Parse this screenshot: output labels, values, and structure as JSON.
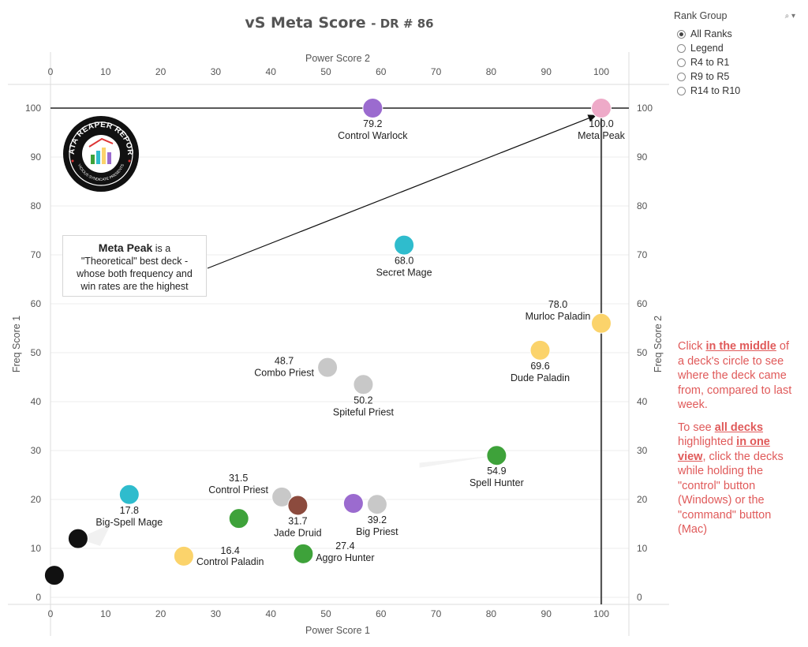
{
  "title": {
    "main": "vS Meta Score",
    "sub": "- DR # 86"
  },
  "colors": {
    "purple": "#9b6bcf",
    "pink": "#eeaac8",
    "teal": "#2fbccd",
    "yellow": "#fbd36b",
    "gray": "#c8c8c8",
    "green": "#3ea23a",
    "brown": "#8c4b3e",
    "black": "#111111"
  },
  "chart_data": {
    "type": "scatter",
    "xlabel_bottom": "Power Score 1",
    "xlabel_top": "Power Score 2",
    "ylabel_left": "Freq Score 1",
    "ylabel_right": "Freq Score 2",
    "xlim": [
      0,
      105
    ],
    "ylim": [
      -1,
      105
    ],
    "xticks": [
      "0",
      "10",
      "20",
      "30",
      "40",
      "50",
      "60",
      "70",
      "80",
      "90",
      "100"
    ],
    "yticks": [
      "0",
      "10",
      "20",
      "30",
      "40",
      "50",
      "60",
      "70",
      "80",
      "90",
      "100"
    ],
    "reference_lines": {
      "x": 100,
      "y": 100
    },
    "points": [
      {
        "name": "Control Warlock",
        "score": "79.2",
        "x": 58.5,
        "y": 100,
        "color": "#9b6bcf",
        "label_pos": "below"
      },
      {
        "name": "Meta Peak",
        "score": "100.0",
        "x": 100,
        "y": 100,
        "color": "#eeaac8",
        "label_pos": "below"
      },
      {
        "name": "Secret Mage",
        "score": "68.0",
        "x": 64.2,
        "y": 72,
        "color": "#2fbccd",
        "label_pos": "below"
      },
      {
        "name": "Murloc Paladin",
        "score": "78.0",
        "x": 100,
        "y": 56,
        "color": "#fbd36b",
        "label_pos": "upper-left"
      },
      {
        "name": "Dude Paladin",
        "score": "69.6",
        "x": 88.9,
        "y": 50.5,
        "color": "#fbd36b",
        "label_pos": "below"
      },
      {
        "name": "Combo Priest",
        "score": "48.7",
        "x": 50.3,
        "y": 47,
        "color": "#c8c8c8",
        "label_pos": "left"
      },
      {
        "name": "Spiteful Priest",
        "score": "50.2",
        "x": 56.8,
        "y": 43.5,
        "color": "#c8c8c8",
        "label_pos": "below"
      },
      {
        "name": "Spell Hunter",
        "score": "54.9",
        "x": 81,
        "y": 29,
        "color": "#3ea23a",
        "label_pos": "below"
      },
      {
        "name": "Big-Spell Mage",
        "score": "17.8",
        "x": 14.3,
        "y": 21,
        "color": "#2fbccd",
        "label_pos": "below"
      },
      {
        "name": "Control Priest",
        "score": "31.5",
        "x": 42,
        "y": 20.5,
        "color": "#c8c8c8",
        "label_pos": "upper-left"
      },
      {
        "name": "Jade Druid",
        "score": "31.7",
        "x": 44.9,
        "y": 18.8,
        "color": "#8c4b3e",
        "label_pos": "below"
      },
      {
        "name": "Big Priest",
        "score": "39.2",
        "x": 59.3,
        "y": 19,
        "color": "#c8c8c8",
        "label_pos": "below"
      },
      {
        "name": "",
        "score": "",
        "x": 55,
        "y": 19.2,
        "color": "#9b6bcf",
        "label_pos": "none"
      },
      {
        "name": "Control Paladin",
        "score": "16.4",
        "x": 34.2,
        "y": 16.1,
        "color": "#3ea23a",
        "label_pos": "lower-left-text"
      },
      {
        "name": "Aggro Hunter",
        "score": "27.4",
        "x": 45.9,
        "y": 8.9,
        "color": "#3ea23a",
        "label_pos": "right"
      },
      {
        "name": "",
        "score": "",
        "x": 24.2,
        "y": 8.4,
        "color": "#fbd36b",
        "label_pos": "none"
      },
      {
        "name": "",
        "score": "",
        "x": 5,
        "y": 12,
        "color": "#111111",
        "label_pos": "none"
      },
      {
        "name": "",
        "score": "",
        "x": 0.7,
        "y": 4.5,
        "color": "#111111",
        "label_pos": "none"
      }
    ]
  },
  "rank_group": {
    "title": "Rank Group",
    "options": [
      {
        "label": "All Ranks",
        "selected": true
      },
      {
        "label": "Legend",
        "selected": false
      },
      {
        "label": "R4 to R1",
        "selected": false
      },
      {
        "label": "R9 to R5",
        "selected": false
      },
      {
        "label": "R14 to R10",
        "selected": false
      }
    ]
  },
  "callout": {
    "bold": "Meta Peak",
    "rest1": " is a",
    "line2": "\"Theoretical\" best deck -",
    "line3": "whose both frequency and",
    "line4": "win rates are the highest"
  },
  "instructions": {
    "p1_a": "Click ",
    "p1_b": "in the middle",
    "p1_c": " of a deck's circle to see where the deck came from, compared to last week.",
    "p2_a": "To see ",
    "p2_b": "all decks ",
    "p2_c": "highlighted ",
    "p2_d": "in one view",
    "p2_e": ", click the decks while holding the \"control\" button (Windows) or the \"command\" button (Mac)"
  },
  "logo": {
    "text_top": "DATA REAPER REPORT",
    "text_bottom": "VICIOUS SYNDICATE PRESENTS",
    "icon": "reaper-logo-icon"
  }
}
